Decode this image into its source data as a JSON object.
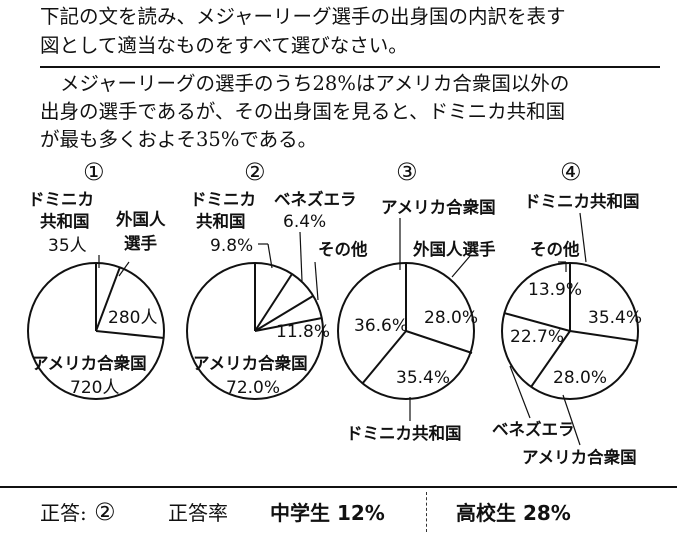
{
  "question": {
    "line1": "下記の文を読み、メジャーリーグ選手の出身国の内訳を表す",
    "line2": "図として適当なものをすべて選びなさい。"
  },
  "passage": {
    "line1": "メジャーリーグの選手のうち28%はアメリカ合衆国以外の",
    "line2": "出身の選手であるが、その出身国を見ると、ドミニカ共和国",
    "line3": "が最も多くおよそ35%である。"
  },
  "charts": [
    {
      "number": "①",
      "labels": {
        "dominican_a": "ドミニカ",
        "dominican_b": "共和国",
        "dominican_val": "35人",
        "foreign_a": "外国人",
        "foreign_b": "選手",
        "foreign_val": "280人",
        "usa": "アメリカ合衆国",
        "usa_val": "720人"
      }
    },
    {
      "number": "②",
      "labels": {
        "dominican_a": "ドミニカ",
        "dominican_b": "共和国",
        "dominican_val": "9.8%",
        "venezuela": "ベネズエラ",
        "venezuela_val": "6.4%",
        "other": "その他",
        "other_val": "11.8%",
        "usa": "アメリカ合衆国",
        "usa_val": "72.0%"
      }
    },
    {
      "number": "③",
      "labels": {
        "usa": "アメリカ合衆国",
        "usa_val": "36.6%",
        "foreign": "外国人選手",
        "foreign_val": "28.0%",
        "dominican": "ドミニカ共和国",
        "dominican_val": "35.4%"
      }
    },
    {
      "number": "④",
      "labels": {
        "dominican": "ドミニカ共和国",
        "dominican_val": "35.4%",
        "other": "その他",
        "other_val": "13.9%",
        "venezuela": "ベネズエラ",
        "venezuela_val": "22.7%",
        "usa": "アメリカ合衆国",
        "usa_val": "28.0%"
      }
    }
  ],
  "answer": {
    "label": "正答:",
    "value": "②",
    "rate_label": "正答率",
    "middle_school": "中学生 12%",
    "high_school": "高校生 28%"
  }
}
